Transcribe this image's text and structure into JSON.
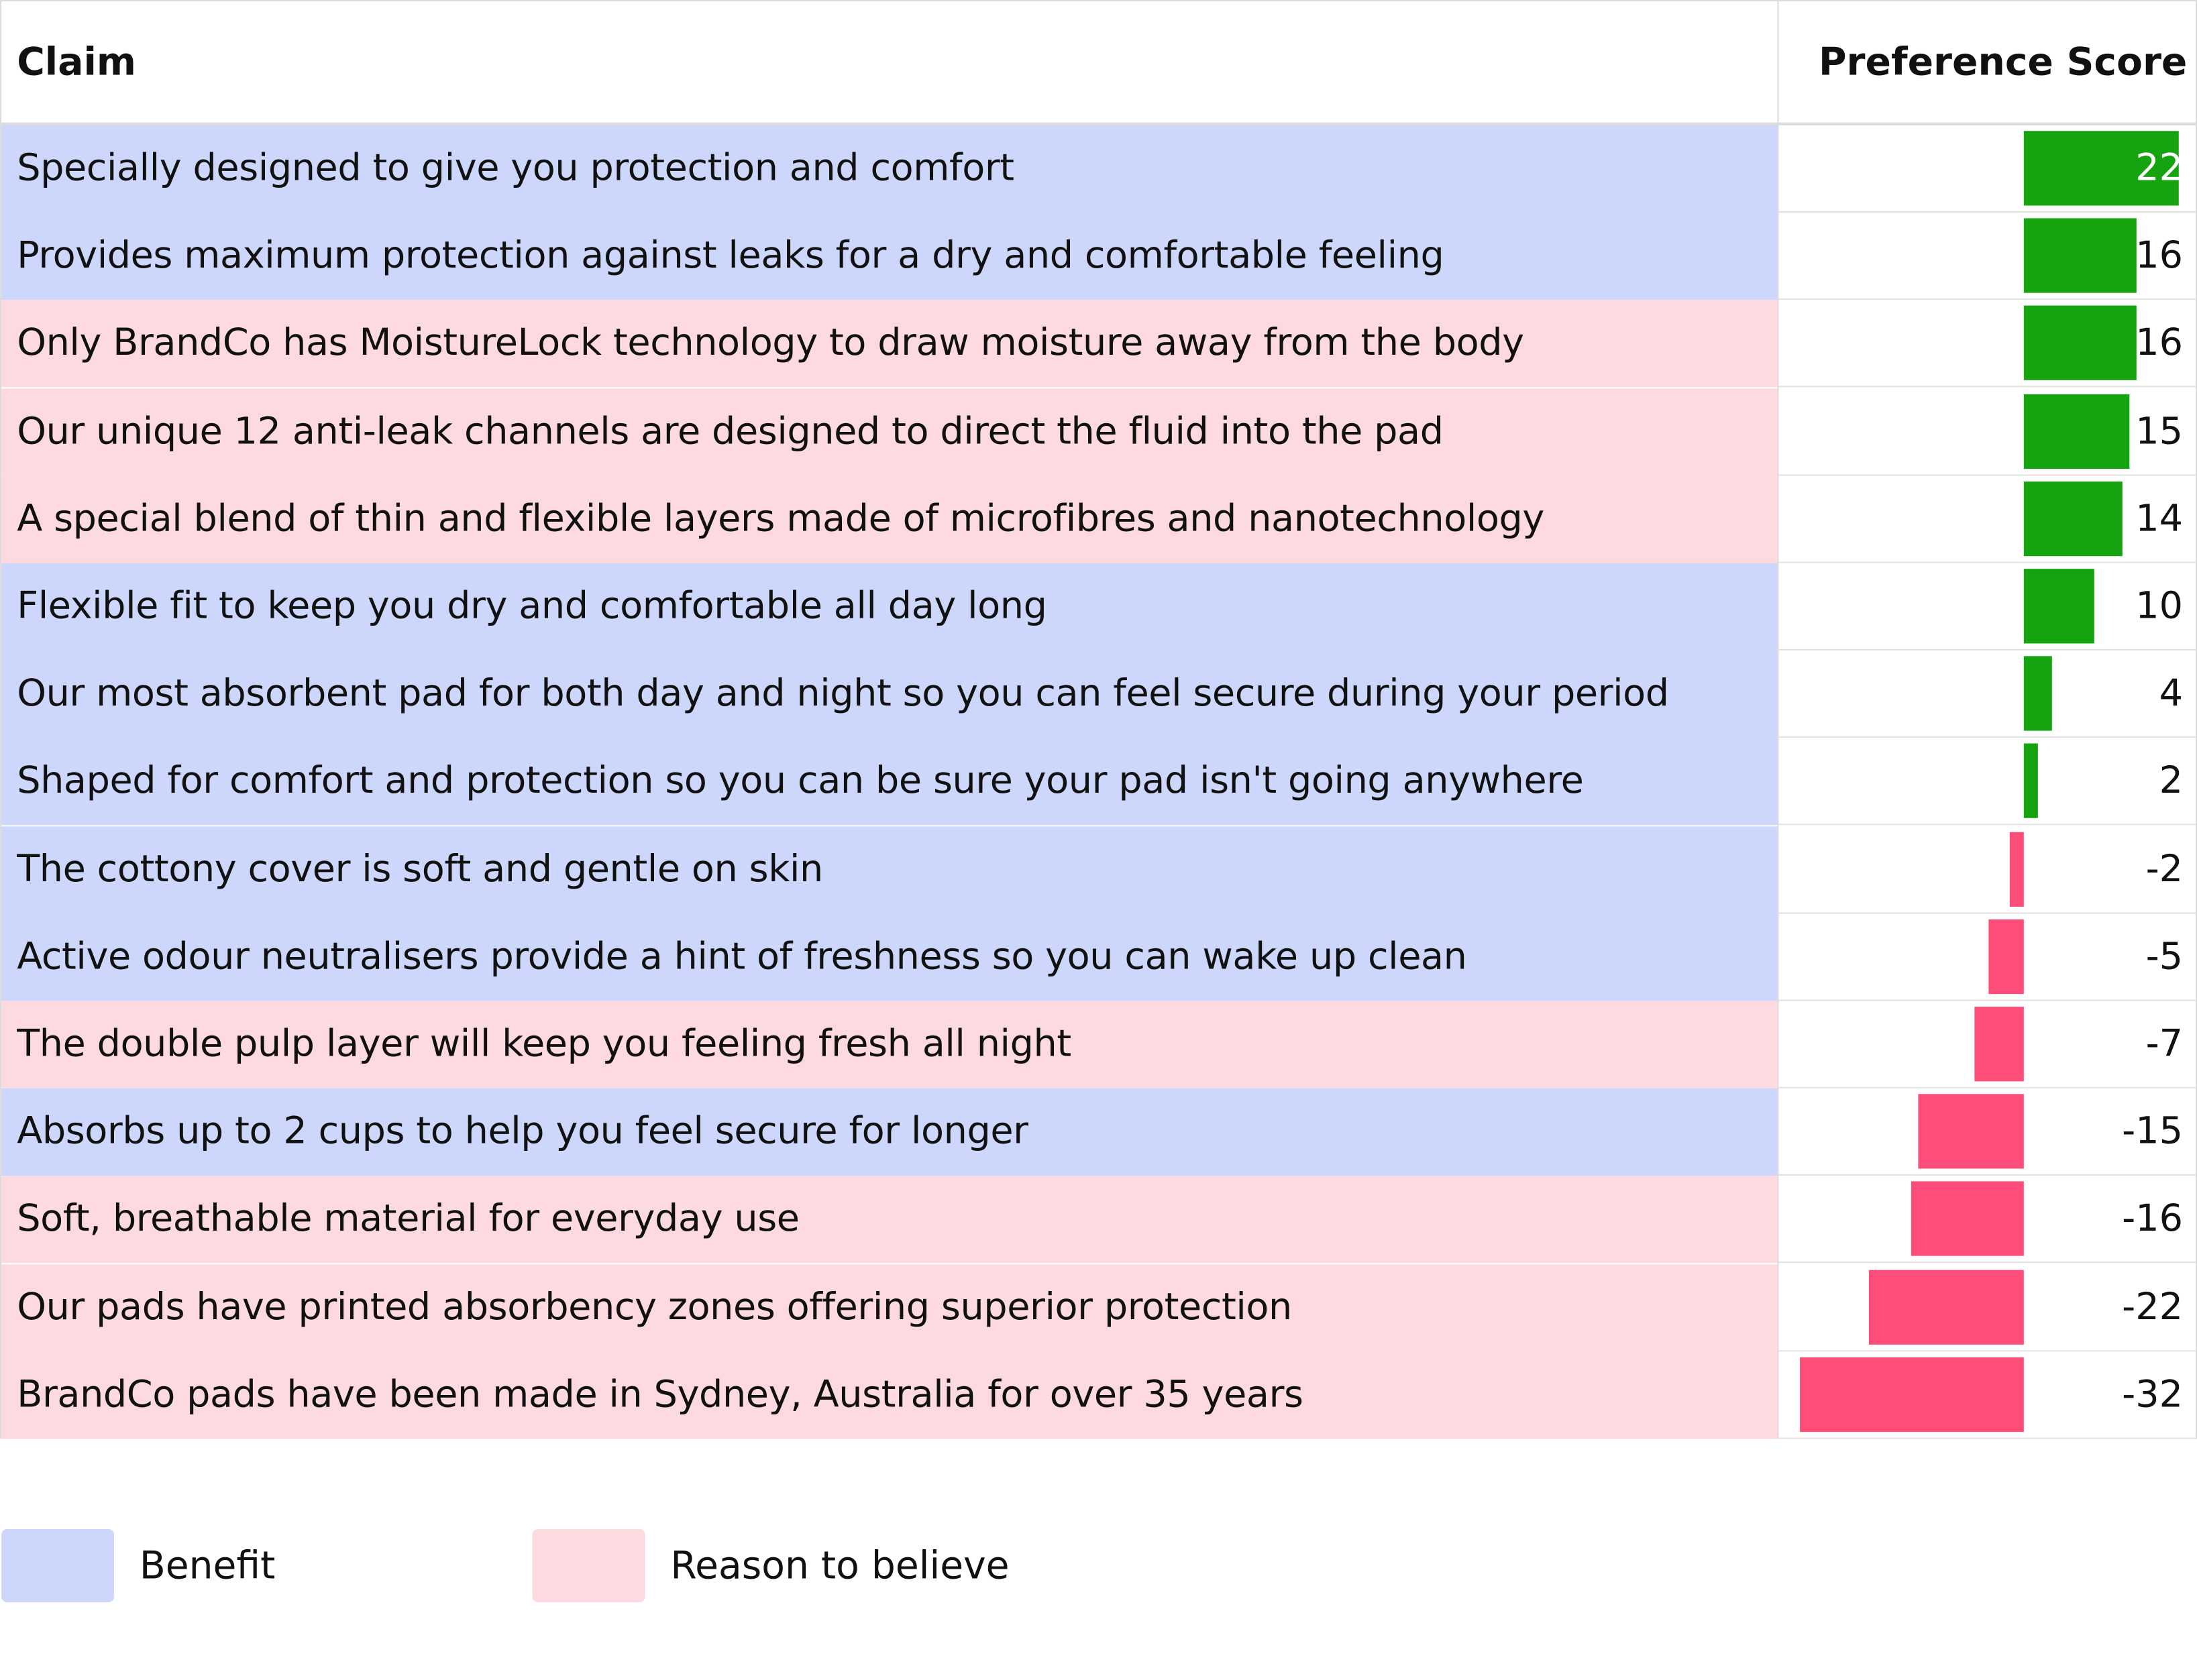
{
  "header": {
    "claim_label": "Claim",
    "score_label": "Preference Score"
  },
  "colors": {
    "benefit": "#ccd7fb",
    "reason_to_believe": "#fdd9e0",
    "positive_bar": "#15a40f",
    "negative_bar": "#ff4d79"
  },
  "legend": {
    "benefit": "Benefit",
    "reason_to_believe": "Reason to believe"
  },
  "chart_data": {
    "type": "table",
    "columns": [
      "Claim",
      "Preference Score"
    ],
    "xlim": [
      -32,
      22
    ],
    "rows": [
      {
        "claim": "Specially designed to give you protection and comfort",
        "score": 22,
        "category": "Benefit"
      },
      {
        "claim": "Provides maximum protection against leaks for a dry and comfortable feeling",
        "score": 16,
        "category": "Benefit"
      },
      {
        "claim": "Only BrandCo has MoistureLock technology to draw moisture away from the body",
        "score": 16,
        "category": "Reason to believe"
      },
      {
        "claim": "Our unique 12 anti-leak channels are designed to direct the fluid into the pad",
        "score": 15,
        "category": "Reason to believe"
      },
      {
        "claim": "A special blend of thin and flexible layers made of microfibres and nanotechnology",
        "score": 14,
        "category": "Reason to believe"
      },
      {
        "claim": "Flexible fit to keep you dry and comfortable all day long",
        "score": 10,
        "category": "Benefit"
      },
      {
        "claim": "Our most absorbent pad for both day and night so you can feel secure during your period",
        "score": 4,
        "category": "Benefit"
      },
      {
        "claim": "Shaped for comfort and protection so you can be sure your pad isn't going anywhere",
        "score": 2,
        "category": "Benefit"
      },
      {
        "claim": "The cottony cover is soft and gentle on skin",
        "score": -2,
        "category": "Benefit"
      },
      {
        "claim": "Active odour neutralisers provide a hint of freshness so you can wake up clean",
        "score": -5,
        "category": "Benefit"
      },
      {
        "claim": "The double pulp layer will keep you feeling fresh all night",
        "score": -7,
        "category": "Reason to believe"
      },
      {
        "claim": "Absorbs up to 2 cups to help you feel secure for longer",
        "score": -15,
        "category": "Benefit"
      },
      {
        "claim": "Soft, breathable material for everyday use",
        "score": -16,
        "category": "Reason to believe"
      },
      {
        "claim": "Our pads have printed absorbency zones offering superior protection",
        "score": -22,
        "category": "Reason to believe"
      },
      {
        "claim": "BrandCo pads have been made in Sydney, Australia for over 35 years",
        "score": -32,
        "category": "Reason to believe"
      }
    ]
  }
}
